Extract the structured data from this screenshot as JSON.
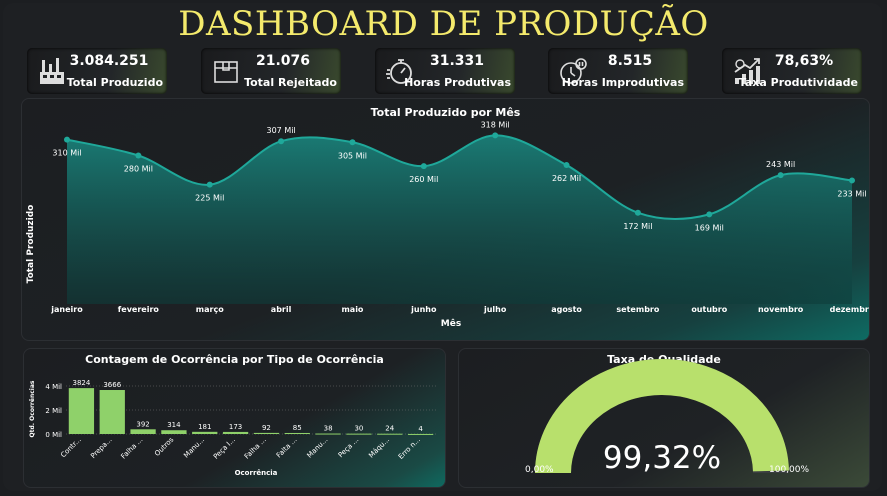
{
  "title": "DASHBOARD DE PRODUÇÃO",
  "kpis": [
    {
      "value": "3.084.251",
      "label": "Total Produzido",
      "icon": "factory-icon"
    },
    {
      "value": "21.076",
      "label": "Total Rejeitado",
      "icon": "box-icon"
    },
    {
      "value": "31.331",
      "label": "Horas Produtivas",
      "icon": "stopwatch-icon"
    },
    {
      "value": "8.515",
      "label": "Horas Improdutivas",
      "icon": "clock-pause-icon"
    },
    {
      "value": "78,63%",
      "label": "Taxa Produtividade",
      "icon": "growth-chart-icon"
    }
  ],
  "line_chart": {
    "title": "Total Produzido por Mês",
    "xlabel": "Mês",
    "ylabel": "Total Produzido"
  },
  "bar_chart": {
    "title": "Contagem de Ocorrência por Tipo de Ocorrência",
    "xlabel": "Ocorrência",
    "ylabel": "Qtd. Ocorrências"
  },
  "gauge": {
    "title": "Taxa de Qualidade",
    "value_label": "99,32%",
    "min_label": "0,00%",
    "max_label": "100,00%"
  },
  "colors": {
    "title": "#f4ea6c",
    "line": "#1fa89a",
    "bars": "#8fd16a",
    "gauge": "#b8e06c"
  },
  "chart_data": [
    {
      "type": "area",
      "title": "Total Produzido por Mês",
      "xlabel": "Mês",
      "ylabel": "Total Produzido",
      "categories": [
        "janeiro",
        "fevereiro",
        "março",
        "abril",
        "maio",
        "junho",
        "julho",
        "agosto",
        "setembro",
        "outubro",
        "novembro",
        "dezembro"
      ],
      "values": [
        310000,
        280000,
        225000,
        307000,
        305000,
        260000,
        318000,
        262000,
        172000,
        169000,
        243000,
        233000
      ],
      "data_labels": [
        "310 Mil",
        "280 Mil",
        "225 Mil",
        "307 Mil",
        "305 Mil",
        "260 Mil",
        "318 Mil",
        "262 Mil",
        "172 Mil",
        "169 Mil",
        "243 Mil",
        "233 Mil"
      ],
      "grid": false
    },
    {
      "type": "bar",
      "title": "Contagem de Ocorrência por Tipo de Ocorrência",
      "xlabel": "Ocorrência",
      "ylabel": "Qtd. Ocorrências",
      "categories": [
        "Contr...",
        "Prepa...",
        "Falha ...",
        "Outros",
        "Manu...",
        "Peça I...",
        "Falha ...",
        "Falta ...",
        "Manu...",
        "Peça ...",
        "Máqu...",
        "Erro n..."
      ],
      "values": [
        3824,
        3666,
        392,
        314,
        181,
        173,
        92,
        85,
        38,
        30,
        24,
        4
      ],
      "yticks": [
        "0 Mil",
        "2 Mil",
        "4 Mil"
      ],
      "ylim": [
        0,
        4000
      ],
      "grid": true
    },
    {
      "type": "gauge",
      "title": "Taxa de Qualidade",
      "value": 99.32,
      "min": 0,
      "max": 100
    }
  ]
}
